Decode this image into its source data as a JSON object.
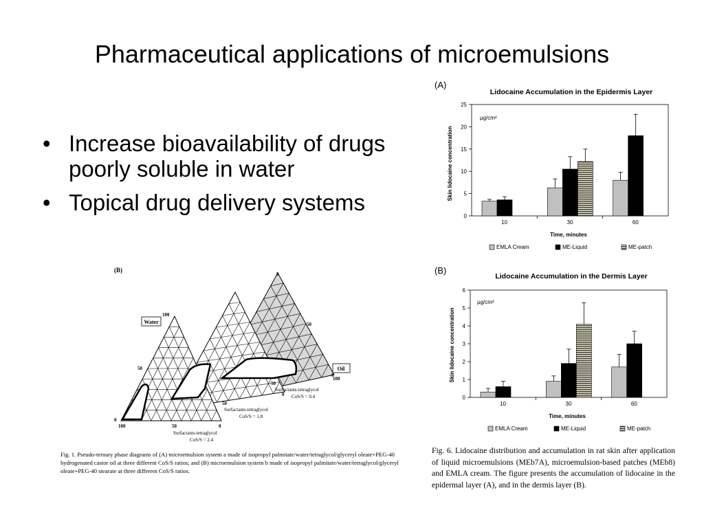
{
  "slide": {
    "title": "Pharmaceutical applications of microemulsions",
    "bullets": [
      "Increase bioavailability of drugs poorly soluble in water",
      "Topical drug delivery systems"
    ]
  },
  "colors": {
    "emla": "#c0c0c0",
    "liquid": "#000000",
    "patch_stripe": "#3a3a3a",
    "ternary_fill": "#d8d8d8"
  },
  "figure6": {
    "caption": "Fig. 6. Lidocaine distribution and accumulation in rat skin after application of liquid microemulsions (MEb7A), microemulsion-based patches (MEb8) and EMLA cream. The figure presents the accumulation of lidocaine in the epidermal layer (A), and in the dermis layer (B)."
  },
  "chart_data": [
    {
      "type": "bar",
      "panel_label": "(A)",
      "title": "Lidocaine Accumulation in the Epidermis Layer",
      "xlabel": "Time, minutes",
      "ylabel": "Skin lidocaine concentration",
      "unit_label": "µg/cm²",
      "categories": [
        "10",
        "30",
        "60"
      ],
      "ylim": [
        0,
        25
      ],
      "yticks": [
        0,
        5,
        10,
        15,
        20,
        25
      ],
      "legend_position": "bottom",
      "series": [
        {
          "name": "EMLA Cream",
          "values": [
            3.3,
            6.3,
            8.0
          ],
          "errors": [
            0.4,
            2.0,
            1.8
          ]
        },
        {
          "name": "ME-Liquid",
          "values": [
            3.6,
            10.5,
            18.0
          ],
          "errors": [
            0.7,
            2.8,
            4.8
          ]
        },
        {
          "name": "ME-patch",
          "values": [
            null,
            12.2,
            null
          ],
          "errors": [
            null,
            2.8,
            null
          ]
        }
      ]
    },
    {
      "type": "bar",
      "panel_label": "(B)",
      "title": "Lidocaine Accumulation in the Dermis Layer",
      "xlabel": "Time, minutes",
      "ylabel": "Skin lidocaine concentration",
      "unit_label": "µg/cm²",
      "categories": [
        "10",
        "30",
        "60"
      ],
      "ylim": [
        0,
        6
      ],
      "yticks": [
        0,
        1,
        2,
        3,
        4,
        5,
        6
      ],
      "legend_position": "bottom",
      "series": [
        {
          "name": "EMLA Cream",
          "values": [
            0.3,
            0.9,
            1.7
          ],
          "errors": [
            0.2,
            0.3,
            0.7
          ]
        },
        {
          "name": "ME-Liquid",
          "values": [
            0.6,
            1.9,
            3.0
          ],
          "errors": [
            0.3,
            0.8,
            0.7
          ]
        },
        {
          "name": "ME-patch",
          "values": [
            null,
            4.1,
            null
          ],
          "errors": [
            null,
            1.2,
            null
          ]
        }
      ]
    }
  ],
  "figure1": {
    "panel_label": "(B)",
    "labels": {
      "water": "Water",
      "oil": "Oil",
      "n0_top": "0",
      "n50_right": "50",
      "n100_right": "100",
      "n100_water": "100",
      "n50_left": "50",
      "n0_left": "0",
      "n100_bottom": "100",
      "n50_b1": "50",
      "n0_b1": "0",
      "n50_b2": "50",
      "n0_b2": "0",
      "n50_b3": "50",
      "n0_b3": "0"
    },
    "ratios": [
      {
        "name": "Surfactants-tetraglycol",
        "value": "CoS/S = 0.4"
      },
      {
        "name": "Surfactants-tetraglycol",
        "value": "CoS/S = 1.8"
      },
      {
        "name": "Surfactants-tetraglycol",
        "value": "CoS/S = 2.4"
      }
    ],
    "caption": "Fig. 1. Pseudo-ternary phase diagrams of (A) microemulsion system a made of isopropyl palmitate/water/tetraglycol/glyceryl oleate+PEG-40 hydrogenated castor oil at three different CoS/S ratios; and (B) microemulsion system b made of isopropyl palmitate/water/tetraglycol/glyceryl oleate+PEG-40 stearate at three different CoS/S ratios."
  }
}
